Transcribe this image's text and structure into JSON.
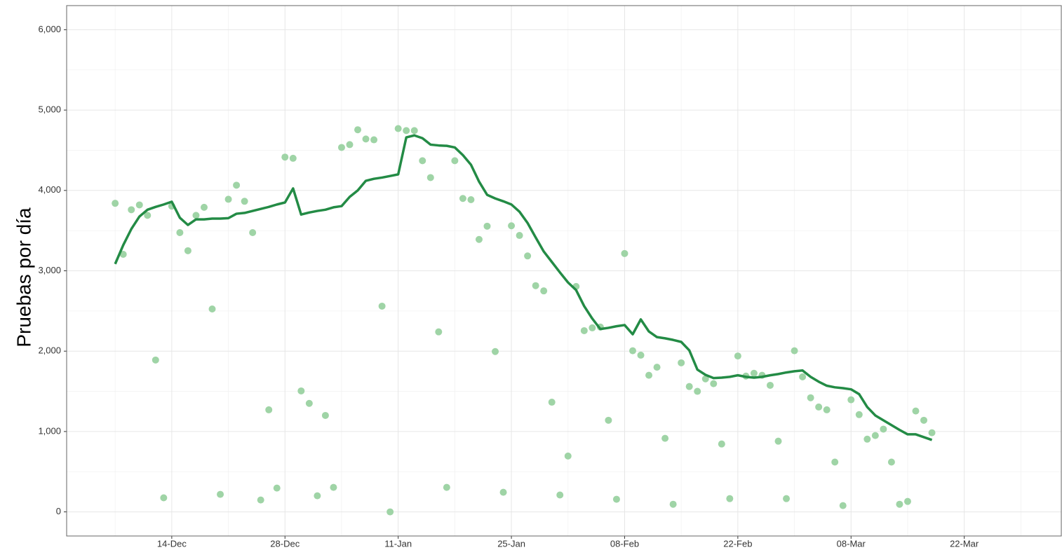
{
  "chart_data": {
    "type": "scatter",
    "ylabel": "Pruebas por día",
    "x": [
      "07-Dec",
      "08-Dec",
      "09-Dec",
      "10-Dec",
      "11-Dec",
      "12-Dec",
      "13-Dec",
      "14-Dec",
      "15-Dec",
      "16-Dec",
      "17-Dec",
      "18-Dec",
      "19-Dec",
      "20-Dec",
      "21-Dec",
      "22-Dec",
      "23-Dec",
      "24-Dec",
      "25-Dec",
      "26-Dec",
      "27-Dec",
      "28-Dec",
      "29-Dec",
      "30-Dec",
      "31-Dec",
      "01-Jan",
      "02-Jan",
      "03-Jan",
      "04-Jan",
      "05-Jan",
      "06-Jan",
      "07-Jan",
      "08-Jan",
      "09-Jan",
      "10-Jan",
      "11-Jan",
      "12-Jan",
      "13-Jan",
      "14-Jan",
      "15-Jan",
      "16-Jan",
      "17-Jan",
      "18-Jan",
      "19-Jan",
      "20-Jan",
      "21-Jan",
      "22-Jan",
      "23-Jan",
      "24-Jan",
      "25-Jan",
      "26-Jan",
      "27-Jan",
      "28-Jan",
      "29-Jan",
      "30-Jan",
      "31-Jan",
      "01-Feb",
      "02-Feb",
      "03-Feb",
      "04-Feb",
      "05-Feb",
      "06-Feb",
      "07-Feb",
      "08-Feb",
      "09-Feb",
      "10-Feb",
      "11-Feb",
      "12-Feb",
      "13-Feb",
      "14-Feb",
      "15-Feb",
      "16-Feb",
      "17-Feb",
      "18-Feb",
      "19-Feb",
      "20-Feb",
      "21-Feb",
      "22-Feb",
      "23-Feb",
      "24-Feb",
      "25-Feb",
      "26-Feb",
      "27-Feb",
      "28-Feb",
      "01-Mar",
      "02-Mar",
      "03-Mar",
      "04-Mar",
      "05-Mar",
      "06-Mar",
      "07-Mar",
      "08-Mar",
      "09-Mar",
      "10-Mar",
      "11-Mar",
      "12-Mar",
      "13-Mar",
      "14-Mar",
      "15-Mar",
      "16-Mar",
      "17-Mar",
      "18-Mar"
    ],
    "series": [
      {
        "type": "scatter",
        "color": "#9fd4a6",
        "values": [
          3840,
          3205,
          3760,
          3820,
          3690,
          1890,
          175,
          3805,
          3475,
          3250,
          3690,
          3790,
          2525,
          218,
          3890,
          4065,
          3865,
          3475,
          148,
          1270,
          296,
          4415,
          4400,
          1505,
          1350,
          200,
          1200,
          305,
          4535,
          4570,
          4755,
          4640,
          4630,
          2560,
          0,
          4770,
          4745,
          4745,
          4370,
          4160,
          2240,
          305,
          4370,
          3900,
          3885,
          3390,
          3555,
          1995,
          244,
          3560,
          3440,
          3185,
          2815,
          2750,
          1365,
          210,
          695,
          2805,
          2255,
          2290,
          2300,
          1140,
          157,
          3215,
          2005,
          1950,
          1700,
          1800,
          915,
          95,
          1855,
          1560,
          1500,
          1655,
          1595,
          845,
          165,
          1940,
          1690,
          1725,
          1700,
          1575,
          880,
          165,
          2005,
          1680,
          1420,
          1305,
          1270,
          620,
          78,
          1395,
          1210,
          905,
          950,
          1030,
          620,
          95,
          130,
          1255,
          1140,
          985
        ]
      },
      {
        "type": "line",
        "color": "#238b45",
        "values": [
          3085,
          3320,
          3520,
          3675,
          3760,
          3795,
          3825,
          3860,
          3660,
          3570,
          3640,
          3640,
          3650,
          3650,
          3655,
          3710,
          3720,
          3745,
          3770,
          3795,
          3825,
          3850,
          4025,
          3700,
          3725,
          3745,
          3760,
          3790,
          3805,
          3920,
          4000,
          4120,
          4145,
          4160,
          4180,
          4200,
          4660,
          4685,
          4650,
          4570,
          4560,
          4555,
          4535,
          4440,
          4320,
          4110,
          3945,
          3900,
          3865,
          3825,
          3735,
          3595,
          3415,
          3240,
          3110,
          2980,
          2855,
          2760,
          2560,
          2405,
          2275,
          2290,
          2310,
          2325,
          2210,
          2395,
          2245,
          2175,
          2160,
          2140,
          2115,
          2010,
          1770,
          1705,
          1665,
          1670,
          1680,
          1700,
          1680,
          1670,
          1680,
          1700,
          1715,
          1735,
          1750,
          1760,
          1680,
          1620,
          1570,
          1550,
          1540,
          1525,
          1465,
          1305,
          1200,
          1140,
          1080,
          1020,
          965,
          965,
          930,
          895
        ]
      }
    ],
    "xlim": [
      "01-Dec",
      "03-Apr"
    ],
    "xticks": [
      "14-Dec",
      "28-Dec",
      "11-Jan",
      "25-Jan",
      "08-Feb",
      "22-Feb",
      "08-Mar",
      "22-Mar"
    ],
    "ylim": [
      -300,
      6300
    ],
    "yticks": [
      0,
      {
        "value": 1000,
        "label": "1,000"
      },
      {
        "value": 2000,
        "label": "2,000"
      },
      {
        "value": 3000,
        "label": "3,000"
      },
      {
        "value": 4000,
        "label": "4,000"
      },
      {
        "value": 5000,
        "label": "5,000"
      },
      {
        "value": 6000,
        "label": "6,000"
      }
    ],
    "grid": true
  }
}
